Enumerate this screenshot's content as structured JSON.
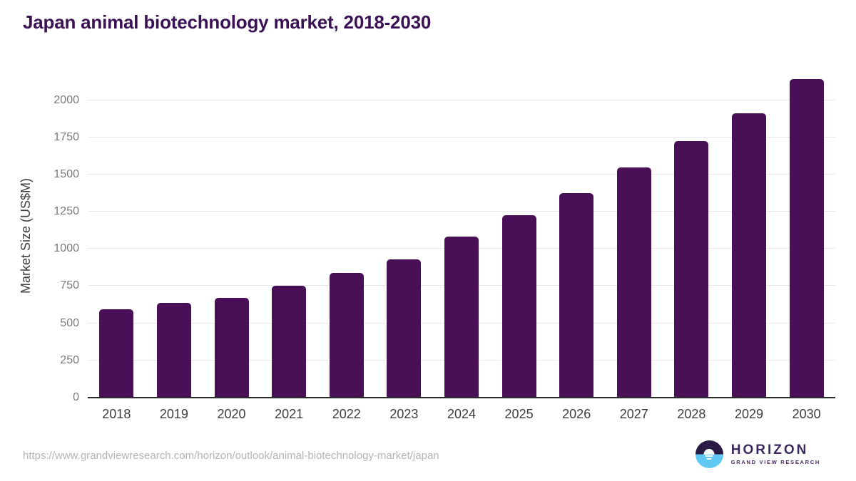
{
  "title": "Japan animal biotechnology market, 2018-2030",
  "y_axis": {
    "title": "Market Size (US$M)"
  },
  "footer": {
    "source_url": "https://www.grandviewresearch.com/horizon/outlook/animal-biotechnology-market/japan"
  },
  "logo": {
    "brand": "HORIZON",
    "sub_brand": "GRAND VIEW RESEARCH"
  },
  "colors": {
    "bar": "#4a1057",
    "title_text": "#3a1155",
    "gridline": "#e9e9e9",
    "axis_line": "#2b2b2b",
    "y_tick_label": "#7a7a7a",
    "x_tick_label": "#3c3c3c",
    "source_text": "#b4b4b4",
    "logo_dark": "#2b1a44",
    "logo_blue": "#5fc9f3"
  },
  "chart_data": {
    "type": "bar",
    "title": "Japan animal biotechnology market, 2018-2030",
    "categories": [
      "2018",
      "2019",
      "2020",
      "2021",
      "2022",
      "2023",
      "2024",
      "2025",
      "2026",
      "2027",
      "2028",
      "2029",
      "2030"
    ],
    "values": [
      595,
      637,
      672,
      751,
      836,
      929,
      1083,
      1224,
      1376,
      1546,
      1724,
      1911,
      2139
    ],
    "xlabel": "",
    "ylabel": "Market Size (US$M)",
    "ylim": [
      0,
      2170
    ],
    "yticks": [
      0,
      250,
      500,
      750,
      1000,
      1250,
      1500,
      1750,
      2000
    ],
    "grid": true,
    "legend": false,
    "bar_color": "#4a1057"
  }
}
